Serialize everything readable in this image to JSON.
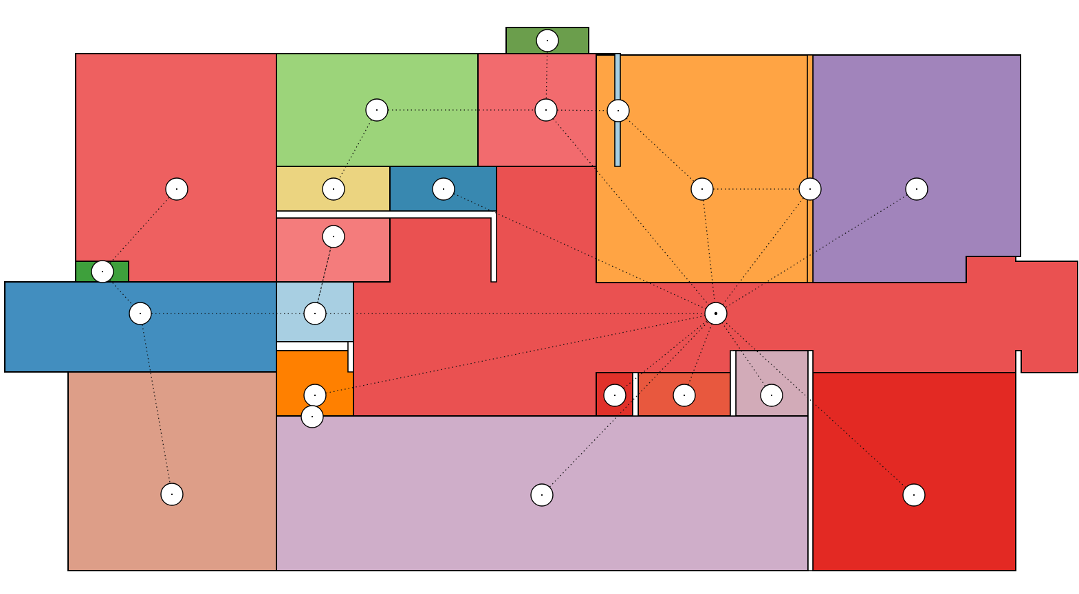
{
  "colors": {
    "background": "#ffffff",
    "outline": "#000000",
    "node_fill": "#ffffff"
  },
  "rooms": [
    {
      "id": "room-upper-left",
      "color": "#ee6060"
    },
    {
      "id": "room-top-green",
      "color": "#9cd47a"
    },
    {
      "id": "room-top-pink",
      "color": "#f26b6e"
    },
    {
      "id": "room-top-annex",
      "color": "#6b9e4c"
    },
    {
      "id": "room-orange",
      "color": "#ffa444"
    },
    {
      "id": "room-purple",
      "color": "#a184bb"
    },
    {
      "id": "room-yellow",
      "color": "#ebd480"
    },
    {
      "id": "room-teal",
      "color": "#3888b0"
    },
    {
      "id": "room-salmon",
      "color": "#f47c7c"
    },
    {
      "id": "room-small-green",
      "color": "#3ea03c"
    },
    {
      "id": "room-blue",
      "color": "#428ebf"
    },
    {
      "id": "room-light-blue",
      "color": "#a8cfe2"
    },
    {
      "id": "room-bright-orange",
      "color": "#ff8000"
    },
    {
      "id": "room-lower-left",
      "color": "#dd9e88"
    },
    {
      "id": "room-lavender",
      "color": "#cfaec9"
    },
    {
      "id": "room-small-red",
      "color": "#e1312a"
    },
    {
      "id": "room-coral",
      "color": "#e8583e"
    },
    {
      "id": "room-mauve",
      "color": "#d2abb8"
    },
    {
      "id": "room-red",
      "color": "#e32923"
    },
    {
      "id": "room-corridor",
      "color": "#ea5151"
    }
  ],
  "nodes": [
    {
      "id": "n-upper-left"
    },
    {
      "id": "n-small-green"
    },
    {
      "id": "n-blue"
    },
    {
      "id": "n-lower-left"
    },
    {
      "id": "n-green"
    },
    {
      "id": "n-yellow"
    },
    {
      "id": "n-top-annex"
    },
    {
      "id": "n-top-pink"
    },
    {
      "id": "n-door-blue"
    },
    {
      "id": "n-teal"
    },
    {
      "id": "n-salmon"
    },
    {
      "id": "n-light-blue"
    },
    {
      "id": "n-bright-orange"
    },
    {
      "id": "n-door-bright-orange"
    },
    {
      "id": "n-orange"
    },
    {
      "id": "n-door-purple"
    },
    {
      "id": "n-purple"
    },
    {
      "id": "n-hub"
    },
    {
      "id": "n-small-red"
    },
    {
      "id": "n-coral"
    },
    {
      "id": "n-mauve"
    },
    {
      "id": "n-lavender"
    },
    {
      "id": "n-red"
    }
  ],
  "edges": [
    [
      "n-upper-left",
      "n-small-green"
    ],
    [
      "n-small-green",
      "n-blue"
    ],
    [
      "n-blue",
      "n-lower-left"
    ],
    [
      "n-blue",
      "n-light-blue"
    ],
    [
      "n-light-blue",
      "n-hub"
    ],
    [
      "n-light-blue",
      "n-salmon"
    ],
    [
      "n-salmon",
      "n-light-blue"
    ],
    [
      "n-green",
      "n-yellow"
    ],
    [
      "n-green",
      "n-top-pink"
    ],
    [
      "n-top-annex",
      "n-top-pink"
    ],
    [
      "n-top-pink",
      "n-door-blue"
    ],
    [
      "n-top-pink",
      "n-hub"
    ],
    [
      "n-door-blue",
      "n-orange"
    ],
    [
      "n-teal",
      "n-hub"
    ],
    [
      "n-orange",
      "n-door-purple"
    ],
    [
      "n-orange",
      "n-hub"
    ],
    [
      "n-door-purple",
      "n-hub"
    ],
    [
      "n-purple",
      "n-hub"
    ],
    [
      "n-bright-orange",
      "n-hub"
    ],
    [
      "n-small-red",
      "n-hub"
    ],
    [
      "n-coral",
      "n-hub"
    ],
    [
      "n-mauve",
      "n-hub"
    ],
    [
      "n-lavender",
      "n-hub"
    ],
    [
      "n-red",
      "n-hub"
    ]
  ]
}
